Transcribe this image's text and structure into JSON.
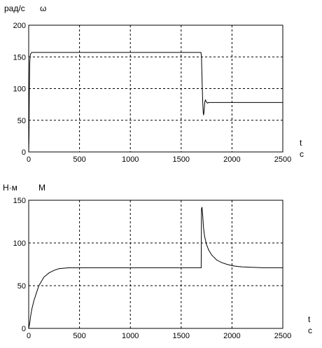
{
  "chart_data": [
    {
      "type": "line",
      "ylabel": "рад/с",
      "series_label": "ω",
      "xlabel_top": "t",
      "xlabel_bottom": "с",
      "xlim": [
        0,
        2500
      ],
      "ylim": [
        0,
        200
      ],
      "xticks": [
        0,
        500,
        1000,
        1500,
        2000,
        2500
      ],
      "yticks": [
        0,
        50,
        100,
        150,
        200
      ],
      "grid": true,
      "series": [
        {
          "x": [
            0,
            3,
            6,
            10,
            12,
            15,
            20,
            25,
            30,
            40,
            60,
            100,
            500,
            1000,
            1500,
            1695,
            1700,
            1703,
            1708,
            1712,
            1716,
            1720,
            1724,
            1728,
            1732,
            1738,
            1745,
            1752,
            1760,
            1770,
            1780,
            1800,
            2000,
            2500
          ],
          "y": [
            0,
            25,
            95,
            140,
            145,
            152,
            155,
            156,
            157,
            157,
            157,
            157,
            157,
            157,
            157,
            157,
            150,
            130,
            100,
            80,
            65,
            58,
            62,
            70,
            78,
            82,
            80,
            78,
            77,
            78,
            78,
            78,
            78,
            78
          ]
        }
      ]
    },
    {
      "type": "line",
      "ylabel": "Н·м",
      "series_label": "М",
      "xlabel_top": "t",
      "xlabel_bottom": "с",
      "xlim": [
        0,
        2500
      ],
      "ylim": [
        0,
        150
      ],
      "xticks": [
        0,
        500,
        1000,
        1500,
        2000,
        2500
      ],
      "yticks": [
        0,
        50,
        100,
        150
      ],
      "grid": true,
      "series": [
        {
          "x": [
            0,
            5,
            10,
            20,
            30,
            50,
            80,
            100,
            150,
            200,
            250,
            300,
            350,
            400,
            500,
            1000,
            1500,
            1697,
            1700,
            1705,
            1712,
            1720,
            1730,
            1750,
            1770,
            1800,
            1850,
            1900,
            1950,
            2000,
            2050,
            2100,
            2200,
            2300,
            2500
          ],
          "y": [
            0,
            3,
            6,
            15,
            22,
            32,
            43,
            50,
            60,
            65,
            68,
            70,
            70.5,
            71,
            71,
            71,
            71,
            71,
            140,
            142,
            132,
            118,
            108,
            98,
            92,
            86,
            80,
            77,
            75,
            73.5,
            72.5,
            72,
            71.5,
            71,
            71
          ]
        }
      ]
    }
  ]
}
